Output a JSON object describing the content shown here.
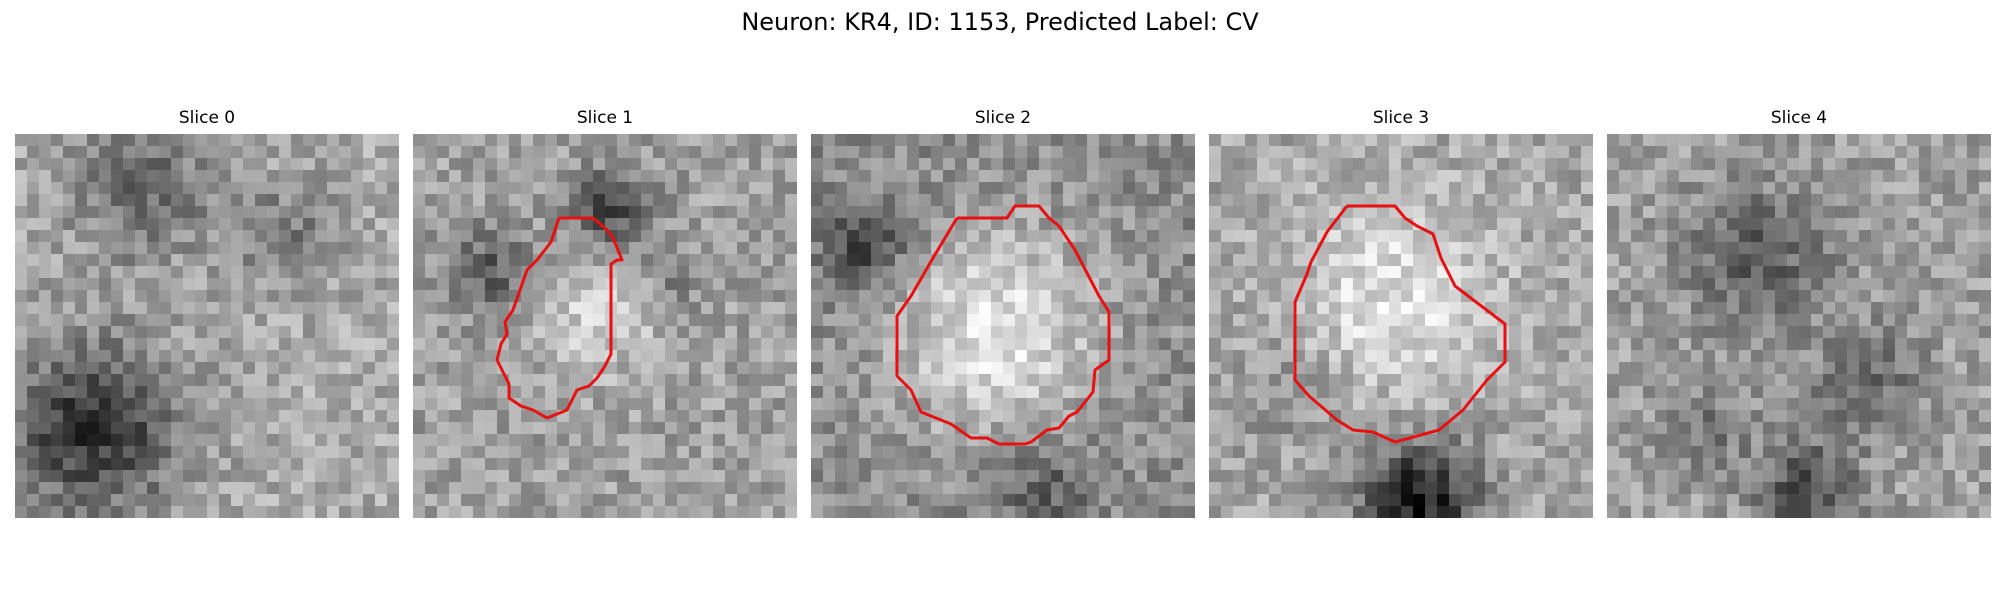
{
  "figure": {
    "title": "Neuron: KR4, ID: 1153, Predicted Label: CV"
  },
  "panels": [
    {
      "title": "Slice 0",
      "has_contour": false,
      "dark_blob": "left-bottom"
    },
    {
      "title": "Slice 1",
      "has_contour": true,
      "contour_icon": "red-outline"
    },
    {
      "title": "Slice 2",
      "has_contour": true,
      "contour_icon": "red-outline"
    },
    {
      "title": "Slice 3",
      "has_contour": true,
      "contour_icon": "red-outline"
    },
    {
      "title": "Slice 4",
      "has_contour": false,
      "dark_blob": "scattered"
    }
  ],
  "colors": {
    "contour": "#e81010",
    "colormap": "gray"
  }
}
